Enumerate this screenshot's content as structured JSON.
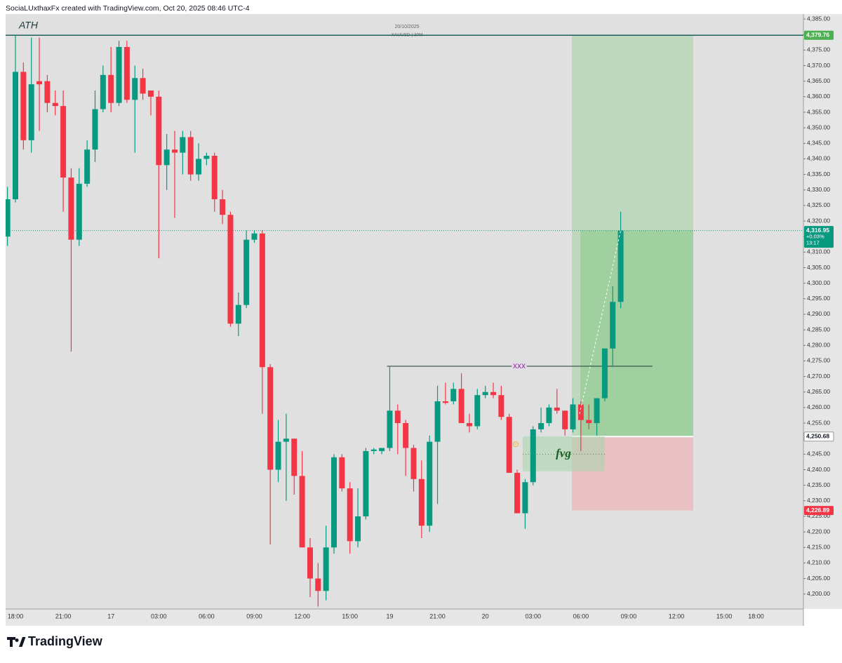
{
  "header": "SociaLUxthaxFx created with TradingView.com, Oct 20, 2025 08:46 UTC-4",
  "brand": "TradingView",
  "chart_data": {
    "type": "candlestick",
    "date_label": "20/10/2025",
    "symbol": "XAUUSD | 30M",
    "up_color": "#089981",
    "down_color": "#f23645",
    "categories": [
      null,
      "18:00",
      null,
      null,
      null,
      null,
      null,
      "21:00",
      null,
      null,
      null,
      null,
      null,
      "17",
      null,
      null,
      null,
      null,
      null,
      "03:00",
      null,
      null,
      null,
      null,
      null,
      "06:00",
      null,
      null,
      null,
      null,
      null,
      "09:00",
      null,
      null,
      null,
      null,
      null,
      "12:00",
      null,
      null,
      null,
      null,
      null,
      "15:00",
      null,
      null,
      null,
      null,
      "19",
      null,
      null,
      null,
      null,
      null,
      "21:00",
      null,
      null,
      null,
      null,
      null,
      "20",
      null,
      null,
      null,
      null,
      null,
      "03:00",
      null,
      null,
      null,
      null,
      null,
      "06:00",
      null,
      null,
      null,
      null,
      null,
      "09:00",
      null,
      null,
      null,
      null,
      null,
      "12:00",
      null,
      null,
      null,
      null,
      null,
      "15:00",
      null,
      null,
      null,
      "18:00"
    ],
    "open": [
      4315,
      4327,
      4368,
      4346,
      4365,
      4365,
      4358,
      4357,
      4334,
      4314,
      4332,
      4343,
      4356,
      4367,
      4358,
      4376,
      4359,
      4366,
      4362,
      4360,
      4338,
      4343,
      4342,
      4347,
      4335,
      4340,
      4341,
      4327,
      4322,
      4287,
      4293,
      4314,
      4316,
      4273,
      4240,
      4249,
      4250,
      4238,
      4215,
      4205,
      4201,
      4215,
      4244,
      4234,
      4217,
      4225,
      4246,
      4246,
      4247,
      4259,
      4255,
      4247,
      4237,
      4222,
      4249,
      4262,
      4262,
      4266,
      4255,
      4254,
      4264,
      4265,
      4264,
      4257,
      4239,
      4226,
      4236,
      4253,
      4255,
      4260,
      4259,
      4253,
      4261,
      4256,
      4255,
      4263,
      4279,
      4294,
      null,
      null,
      null,
      null,
      null,
      null,
      null,
      null,
      null,
      null,
      null,
      null,
      null,
      null,
      null,
      null,
      null
    ],
    "high": [
      4331,
      4380,
      4371,
      4379,
      4379,
      4367,
      4362,
      4362,
      4337,
      4337,
      4346,
      4362,
      4370,
      4376,
      4378,
      4378,
      4370,
      4369,
      4362,
      4362,
      4348,
      4349,
      4349,
      4349,
      4345,
      4342,
      4342,
      4330,
      4323,
      4297,
      4317,
      4317,
      4317,
      4274,
      4256,
      4258,
      4250,
      4246,
      4218,
      4210,
      4222,
      4245,
      4245,
      4236,
      4234,
      4247,
      4247,
      4247,
      4273.3,
      4261,
      4256,
      4248,
      4243,
      4251,
      4267,
      4268,
      4268,
      4271,
      4258,
      4266,
      4267,
      4268,
      4267,
      4258,
      4240,
      4237,
      4254,
      4260,
      4261,
      4266,
      4259,
      4263,
      4262,
      4261,
      4263,
      4279,
      4299,
      4323,
      null,
      null,
      null,
      null,
      null,
      null,
      null,
      null,
      null,
      null,
      null,
      null,
      null,
      null,
      null,
      null,
      null
    ],
    "low": [
      4312,
      4326,
      4343,
      4342,
      4349,
      4355,
      4354,
      4323,
      4278,
      4312,
      4331,
      4339,
      4355,
      4355,
      4357,
      4358,
      4342,
      4359,
      4354,
      4308,
      4330,
      4321,
      4335,
      4333,
      4333,
      4338,
      4323,
      4319,
      4286,
      4283,
      4292,
      4313,
      4258,
      4216,
      4236,
      4230,
      4232,
      4215,
      4199,
      4196,
      4198,
      4213,
      4233,
      4213,
      4215,
      4224,
      4245,
      4245,
      4246,
      4245,
      4238,
      4233,
      4218,
      4220,
      4229,
      4261,
      4261,
      4255,
      4252,
      4253,
      4263,
      4263,
      4256,
      4239,
      4226,
      4221,
      4235,
      4252,
      4254,
      4258,
      4251,
      4252,
      4246,
      4253,
      4251,
      4262,
      4273,
      4292,
      null,
      null,
      null,
      null,
      null,
      null,
      null,
      null,
      null,
      null,
      null,
      null,
      null,
      null,
      null,
      null,
      null
    ],
    "close": [
      4327,
      4368,
      4346,
      4364,
      4364,
      4358,
      4357,
      4334,
      4314,
      4332,
      4343,
      4356,
      4367,
      4358,
      4376,
      4359,
      4366,
      4361,
      4360,
      4338,
      4343,
      4342,
      4347,
      4335,
      4340,
      4341,
      4327,
      4322,
      4287,
      4293,
      4314,
      4316,
      4273,
      4240,
      4249,
      4250,
      4238,
      4215,
      4205,
      4201,
      4215,
      4244,
      4234,
      4217,
      4225,
      4246,
      4246.5,
      4247,
      4259,
      4255,
      4247,
      4237,
      4222,
      4249,
      4262,
      4261.5,
      4266,
      4255,
      4254,
      4264,
      4265,
      4264,
      4257,
      4239,
      4226,
      4236,
      4253,
      4255,
      4260,
      4259,
      4253,
      4261,
      4256,
      4255,
      4263,
      4279,
      4294,
      4316.95,
      null,
      null,
      null,
      null,
      null,
      null,
      null,
      null,
      null,
      null,
      null,
      null,
      null,
      null,
      null,
      null,
      null
    ],
    "ylim": [
      4195.2,
      4386.6
    ],
    "yticks": [
      {
        "value": 4200,
        "label": "4,200.00"
      },
      {
        "value": 4205,
        "label": "4,205.00"
      },
      {
        "value": 4210,
        "label": "4,210.00"
      },
      {
        "value": 4215,
        "label": "4,215.00"
      },
      {
        "value": 4220,
        "label": "4,220.00"
      },
      {
        "value": 4225,
        "label": "4,225.00"
      },
      {
        "value": 4230,
        "label": "4,230.00"
      },
      {
        "value": 4235,
        "label": "4,235.00"
      },
      {
        "value": 4240,
        "label": "4,240.00"
      },
      {
        "value": 4245,
        "label": "4,245.00"
      },
      {
        "value": 4250,
        "label": "4,250.00"
      },
      {
        "value": 4255,
        "label": "4,255.00"
      },
      {
        "value": 4260,
        "label": "4,260.00"
      },
      {
        "value": 4265,
        "label": "4,265.00"
      },
      {
        "value": 4270,
        "label": "4,270.00"
      },
      {
        "value": 4275,
        "label": "4,275.00"
      },
      {
        "value": 4280,
        "label": "4,280.00"
      },
      {
        "value": 4285,
        "label": "4,285.00"
      },
      {
        "value": 4290,
        "label": "4,290.00"
      },
      {
        "value": 4295,
        "label": "4,295.00"
      },
      {
        "value": 4300,
        "label": "4,300.00"
      },
      {
        "value": 4305,
        "label": "4,305.00"
      },
      {
        "value": 4310,
        "label": "4,310.00"
      },
      {
        "value": 4315,
        "label": "4,315.00"
      },
      {
        "value": 4320,
        "label": "4,320.00"
      },
      {
        "value": 4325,
        "label": "4,325.00"
      },
      {
        "value": 4330,
        "label": "4,330.00"
      },
      {
        "value": 4335,
        "label": "4,335.00"
      },
      {
        "value": 4340,
        "label": "4,340.00"
      },
      {
        "value": 4345,
        "label": "4,345.00"
      },
      {
        "value": 4350,
        "label": "4,350.00"
      },
      {
        "value": 4355,
        "label": "4,355.00"
      },
      {
        "value": 4360,
        "label": "4,360.00"
      },
      {
        "value": 4365,
        "label": "4,365.00"
      },
      {
        "value": 4370,
        "label": "4,370.00"
      },
      {
        "value": 4375,
        "label": "4,375.00"
      },
      {
        "value": 4380,
        "label": "4,380.00"
      },
      {
        "value": 4385,
        "label": "4,385.00"
      }
    ],
    "grid": false,
    "ath_label": "ATH",
    "price_tags": [
      {
        "value": 4379.76,
        "label": "4,379.76",
        "color": "#4caf50",
        "line": "solid"
      },
      {
        "value": 4316.95,
        "label": "4,316.95",
        "change": "+0.03%",
        "countdown": "13:17",
        "color": "#089981",
        "line": "dotted"
      },
      {
        "value": 4250.68,
        "label": "4,250.68",
        "color": "#ffffff",
        "line": "none"
      },
      {
        "value": 4226.89,
        "label": "4,226.89",
        "color": "#f23645",
        "line": "none"
      }
    ],
    "position": {
      "entry": 4250.68,
      "target": 4379.76,
      "stop": 4226.89
    },
    "level": {
      "label": "xxx",
      "value": 4273.3
    },
    "fvg": {
      "label": "fvg",
      "top": 4250.7,
      "bottom": 4239.5,
      "mid": 4245
    }
  }
}
